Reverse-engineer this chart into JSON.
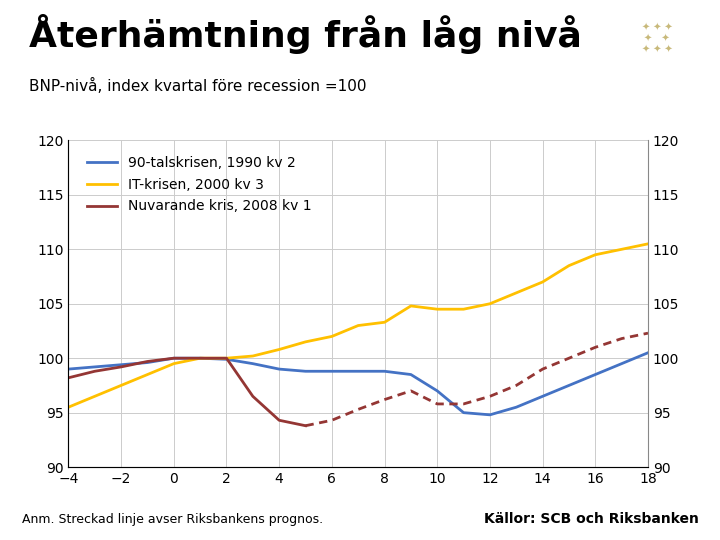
{
  "title": "Återhämtning från låg nivå",
  "subtitle": "BNP-nivå, index kvartal före recession =100",
  "footnote": "Anm. Streckad linje avser Riksbankens prognos.",
  "source": "Källor: SCB och Riksbanken",
  "xlim": [
    -4,
    18
  ],
  "ylim": [
    90,
    120
  ],
  "xticks": [
    -4,
    -2,
    0,
    2,
    4,
    6,
    8,
    10,
    12,
    14,
    16,
    18
  ],
  "yticks": [
    90,
    95,
    100,
    105,
    110,
    115,
    120
  ],
  "fig_bg_color": "#ffffff",
  "plot_bg_color": "#ffffff",
  "series_90s": {
    "label": "90-talskrisen, 1990 kv 2",
    "color": "#4472c4",
    "x": [
      -4,
      -3,
      -2,
      -1,
      0,
      1,
      2,
      3,
      4,
      5,
      6,
      7,
      8,
      9,
      10,
      11,
      12,
      13,
      14,
      15,
      16,
      17,
      18
    ],
    "y": [
      99.0,
      99.2,
      99.4,
      99.6,
      100.0,
      100.0,
      99.9,
      99.5,
      99.0,
      98.8,
      98.8,
      98.8,
      98.8,
      98.5,
      97.0,
      95.0,
      94.8,
      95.5,
      96.5,
      97.5,
      98.5,
      99.5,
      100.5
    ]
  },
  "series_it": {
    "label": "IT-krisen, 2000 kv 3",
    "color": "#ffc000",
    "x": [
      -4,
      -3,
      -2,
      -1,
      0,
      1,
      2,
      3,
      4,
      5,
      6,
      7,
      8,
      9,
      10,
      11,
      12,
      13,
      14,
      15,
      16,
      17,
      18
    ],
    "y": [
      95.5,
      96.5,
      97.5,
      98.5,
      99.5,
      100.0,
      100.0,
      100.2,
      100.8,
      101.5,
      102.0,
      103.0,
      103.3,
      104.8,
      104.5,
      104.5,
      105.0,
      106.0,
      107.0,
      108.5,
      109.5,
      110.0,
      110.5
    ]
  },
  "series_current_solid": {
    "label": "Nuvarande kris, 2008 kv 1",
    "color": "#943634",
    "x": [
      -4,
      -3,
      -2,
      -1,
      0,
      1,
      2,
      3,
      4,
      5
    ],
    "y": [
      98.2,
      98.8,
      99.2,
      99.7,
      100.0,
      100.0,
      100.0,
      96.5,
      94.3,
      93.8
    ]
  },
  "series_current_dashed": {
    "color": "#943634",
    "x": [
      5,
      6,
      7,
      8,
      9,
      10,
      11,
      12,
      13,
      14,
      15,
      16,
      17,
      18
    ],
    "y": [
      93.8,
      94.3,
      95.3,
      96.2,
      97.0,
      95.8,
      95.8,
      96.5,
      97.5,
      99.0,
      100.0,
      101.0,
      101.8,
      102.3
    ]
  },
  "title_fontsize": 26,
  "subtitle_fontsize": 11,
  "tick_fontsize": 10,
  "legend_fontsize": 10,
  "footer_fontsize": 9,
  "logo_bg": "#1a3a6b",
  "footer_bar_color": "#1a3a6b"
}
